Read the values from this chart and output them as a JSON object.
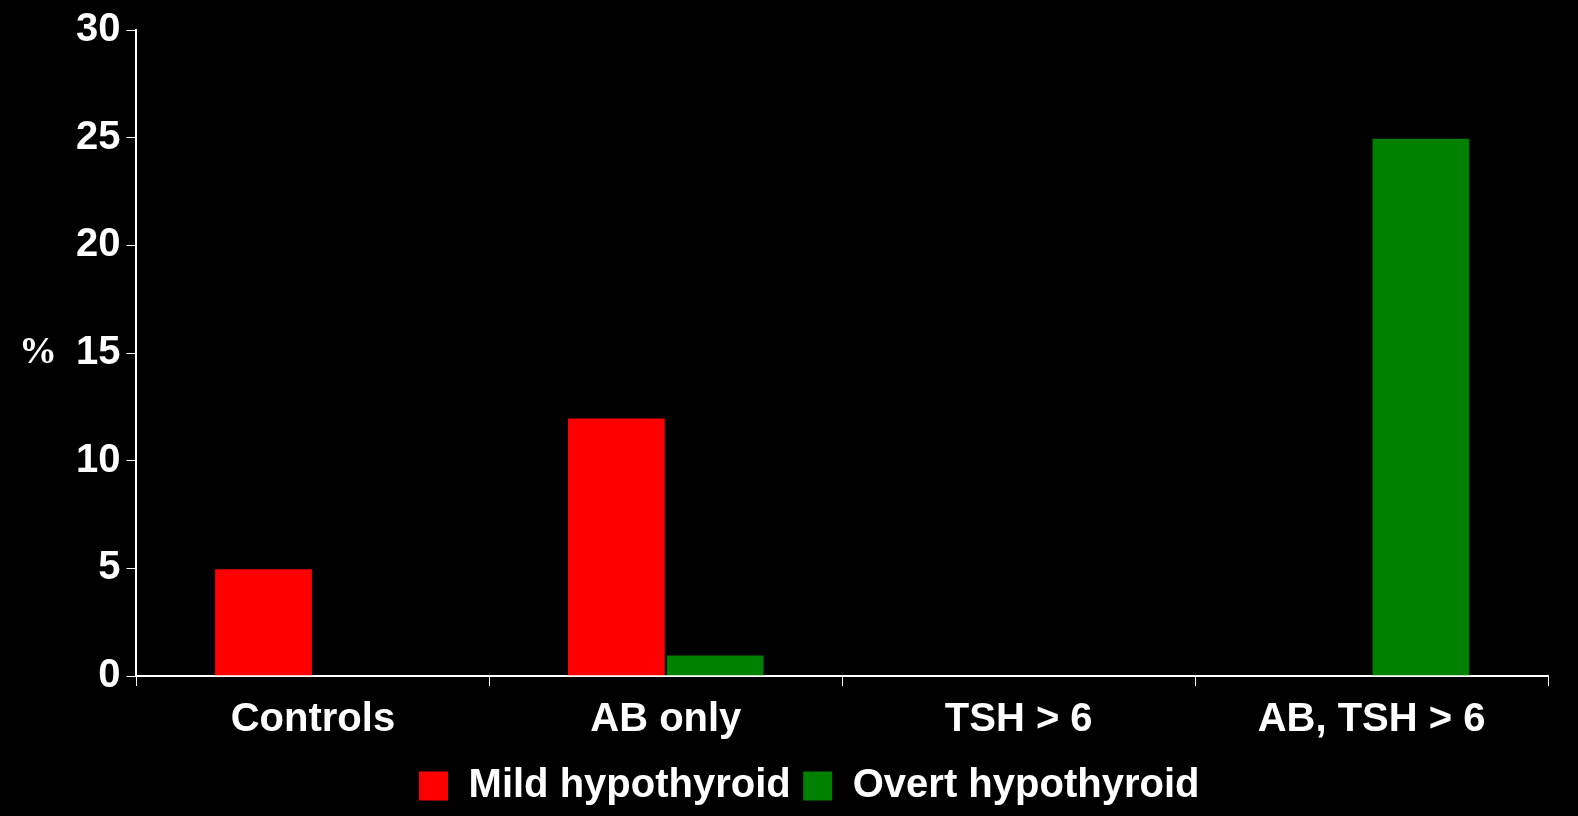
{
  "chart_data": {
    "type": "bar",
    "ylabel": "%",
    "categories": [
      "Controls",
      "AB only",
      "TSH > 6",
      "AB, TSH > 6"
    ],
    "series": [
      {
        "name": "Mild hypothyroid",
        "color": "#ff0000",
        "values": [
          5,
          12,
          0,
          0
        ]
      },
      {
        "name": "Overt hypothyroid",
        "color": "#008000",
        "values": [
          0,
          1,
          0,
          25
        ]
      }
    ],
    "ylim": [
      0,
      30
    ],
    "yticks": [
      0,
      5,
      10,
      15,
      20,
      25,
      30
    ],
    "grid": false,
    "legend": "bottom"
  }
}
